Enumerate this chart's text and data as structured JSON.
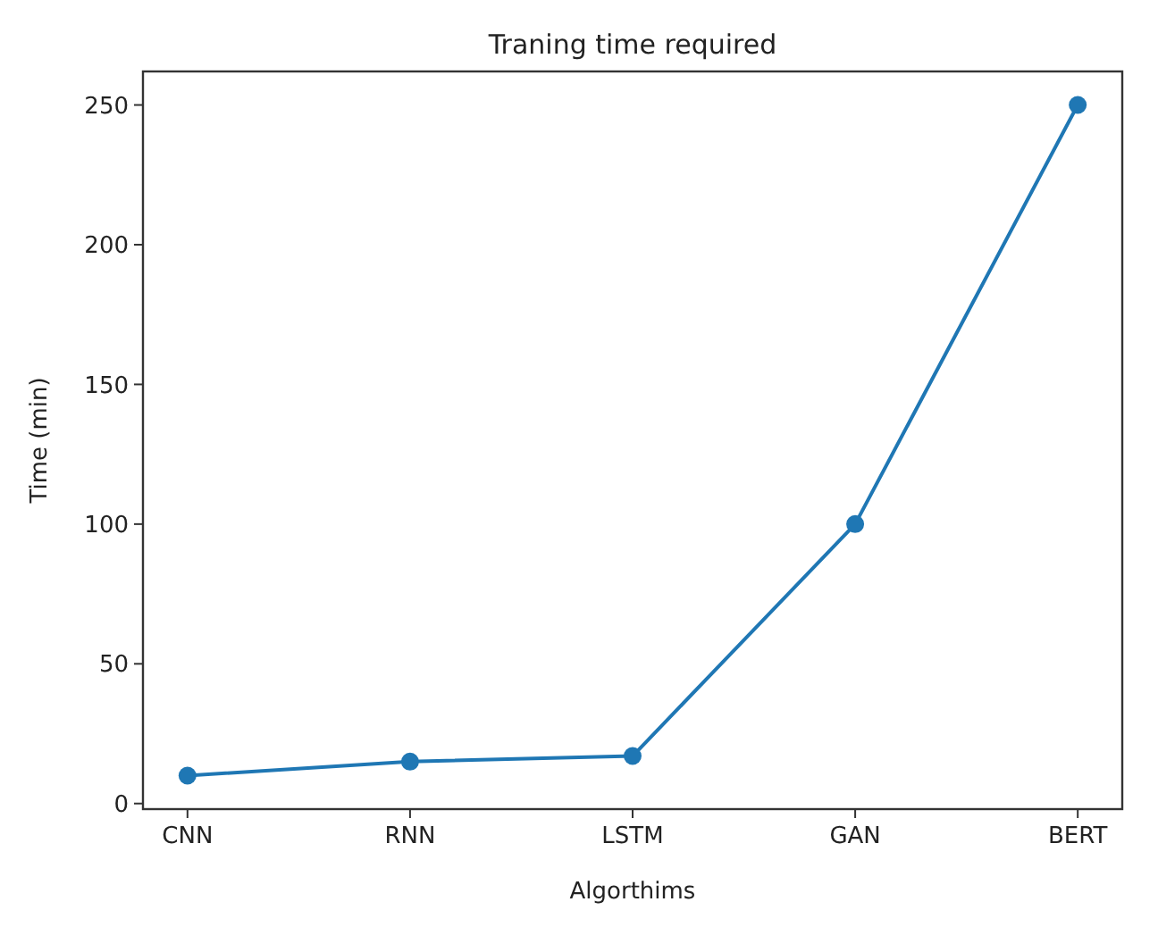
{
  "chart_data": {
    "type": "line",
    "title": "Traning time required",
    "xlabel": "Algorthims",
    "ylabel": "Time (min)",
    "categories": [
      "CNN",
      "RNN",
      "LSTM",
      "GAN",
      "BERT"
    ],
    "series": [
      {
        "color": "#1f77b4",
        "values": [
          10,
          15,
          17,
          100,
          250
        ]
      }
    ],
    "ylim": [
      -2,
      262
    ],
    "yticks": [
      0,
      50,
      100,
      150,
      200,
      250
    ],
    "marker": "circle",
    "line_style": "solid",
    "grid": false
  }
}
